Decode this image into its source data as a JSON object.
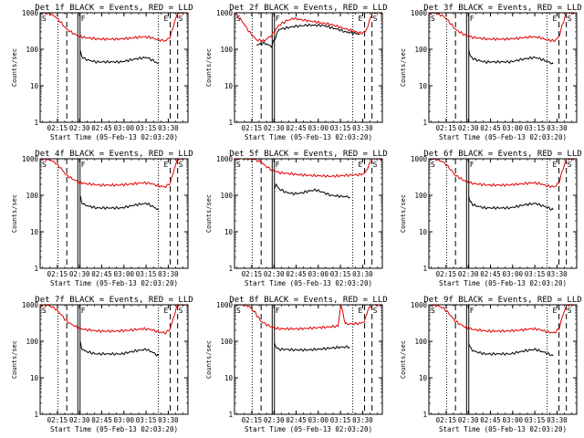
{
  "figure": {
    "background": "#ffffff"
  },
  "style": {
    "events_color": "#000000",
    "lld_color": "#e00000",
    "marker_color": "#000000"
  },
  "common": {
    "ylabel": "Counts/sec",
    "xlabel": "Start Time (05-Feb-13 02:03:20)",
    "xticks": [
      "02:15",
      "02:30",
      "02:45",
      "03:00",
      "03:15",
      "03:30"
    ],
    "yticks": [
      "1",
      "10",
      "100",
      "1000"
    ]
  },
  "chart_data": [
    {
      "type": "line",
      "title": "Det 1f BLACK = Events, RED = LLD",
      "x_unit": "minutes after 02:03:20",
      "xlim": [
        0,
        100
      ],
      "ylim": [
        1,
        1000
      ],
      "yscale": "log",
      "ylabel": "Counts/sec",
      "xlabel": "Start Time (05-Feb-13 02:03:20)",
      "annotations": [
        "S",
        "F",
        "E",
        "S"
      ],
      "markers": {
        "dotted": [
          12,
          80
        ],
        "dashed": [
          18,
          88,
          93
        ],
        "solid": [
          25.5,
          27
        ]
      },
      "series": [
        {
          "name": "BLACK = Events",
          "x": [
            27,
            28,
            30,
            33,
            38,
            45,
            55,
            65,
            72,
            76,
            80
          ],
          "y": [
            95,
            65,
            55,
            50,
            45,
            45,
            45,
            55,
            60,
            50,
            40
          ]
        },
        {
          "name": "RED = LLD",
          "x": [
            0,
            6,
            10,
            14,
            18,
            22,
            25,
            28,
            30,
            35,
            40,
            45,
            52,
            60,
            65,
            70,
            75,
            80,
            85,
            88,
            90,
            93,
            100
          ],
          "y": [
            1000,
            950,
            800,
            550,
            350,
            280,
            240,
            220,
            210,
            200,
            190,
            190,
            190,
            200,
            210,
            220,
            210,
            180,
            170,
            220,
            420,
            1000,
            1000
          ]
        }
      ]
    },
    {
      "type": "line",
      "title": "Det 2f BLACK = Events, RED = LLD",
      "x_unit": "minutes after 02:03:20",
      "xlim": [
        0,
        100
      ],
      "ylim": [
        1,
        1000
      ],
      "yscale": "log",
      "ylabel": "Counts/sec",
      "xlabel": "Start Time (05-Feb-13 02:03:20)",
      "annotations": [
        "S",
        "F",
        "E",
        "S"
      ],
      "markers": {
        "dotted": [
          12,
          80
        ],
        "dashed": [
          18,
          88,
          93
        ],
        "solid": [
          25.5,
          27
        ]
      },
      "series": [
        {
          "name": "BLACK = Events",
          "x": [
            15,
            20,
            25,
            30,
            40,
            50,
            60,
            70,
            75,
            80,
            85
          ],
          "y": [
            130,
            150,
            120,
            350,
            420,
            460,
            450,
            350,
            300,
            280,
            260
          ]
        },
        {
          "name": "RED = LLD",
          "x": [
            0,
            5,
            10,
            15,
            20,
            25,
            30,
            35,
            40,
            45,
            50,
            55,
            60,
            65,
            70,
            75,
            80,
            85,
            88,
            90,
            93,
            100
          ],
          "y": [
            1000,
            600,
            300,
            180,
            170,
            240,
            450,
            600,
            700,
            650,
            600,
            560,
            520,
            480,
            420,
            360,
            320,
            280,
            290,
            400,
            1000,
            1000
          ]
        }
      ]
    },
    {
      "type": "line",
      "title": "Det 3f BLACK = Events, RED = LLD",
      "x_unit": "minutes after 02:03:20",
      "xlim": [
        0,
        100
      ],
      "ylim": [
        1,
        1000
      ],
      "yscale": "log",
      "ylabel": "Counts/sec",
      "xlabel": "Start Time (05-Feb-13 02:03:20)",
      "annotations": [
        "S",
        "F",
        "E",
        "S"
      ],
      "markers": {
        "dotted": [
          12,
          80
        ],
        "dashed": [
          18,
          88,
          93
        ],
        "solid": [
          25.5,
          27
        ]
      },
      "series": [
        {
          "name": "BLACK = Events",
          "x": [
            27,
            28,
            30,
            33,
            38,
            45,
            55,
            65,
            72,
            78,
            84
          ],
          "y": [
            95,
            65,
            55,
            50,
            45,
            45,
            45,
            55,
            60,
            50,
            40
          ]
        },
        {
          "name": "RED = LLD",
          "x": [
            0,
            6,
            10,
            14,
            18,
            22,
            25,
            28,
            30,
            35,
            40,
            45,
            52,
            60,
            65,
            70,
            75,
            80,
            85,
            88,
            90,
            93,
            100
          ],
          "y": [
            1000,
            950,
            800,
            550,
            350,
            280,
            240,
            220,
            210,
            200,
            190,
            190,
            190,
            200,
            210,
            220,
            210,
            180,
            170,
            220,
            420,
            1000,
            1000
          ]
        }
      ]
    },
    {
      "type": "line",
      "title": "Det 4f BLACK = Events, RED = LLD",
      "x_unit": "minutes after 02:03:20",
      "xlim": [
        0,
        100
      ],
      "ylim": [
        1,
        1000
      ],
      "yscale": "log",
      "ylabel": "Counts/sec",
      "xlabel": "Start Time (05-Feb-13 02:03:20)",
      "annotations": [
        "S",
        "F",
        "E",
        "S"
      ],
      "markers": {
        "dotted": [
          12,
          80
        ],
        "dashed": [
          18,
          88,
          93
        ],
        "solid": [
          25.5,
          27
        ]
      },
      "series": [
        {
          "name": "BLACK = Events",
          "x": [
            27,
            28,
            30,
            33,
            38,
            45,
            55,
            65,
            72,
            76,
            80
          ],
          "y": [
            95,
            65,
            55,
            50,
            45,
            45,
            45,
            55,
            60,
            50,
            40
          ]
        },
        {
          "name": "RED = LLD",
          "x": [
            0,
            6,
            10,
            14,
            18,
            22,
            25,
            28,
            30,
            35,
            40,
            45,
            52,
            60,
            65,
            70,
            75,
            80,
            85,
            88,
            90,
            93,
            100
          ],
          "y": [
            1000,
            950,
            800,
            550,
            350,
            280,
            240,
            220,
            210,
            200,
            190,
            190,
            190,
            200,
            210,
            220,
            210,
            180,
            170,
            220,
            420,
            1000,
            1000
          ]
        }
      ]
    },
    {
      "type": "line",
      "title": "Det 5f BLACK = Events, RED = LLD",
      "x_unit": "minutes after 02:03:20",
      "xlim": [
        0,
        100
      ],
      "ylim": [
        1,
        1000
      ],
      "yscale": "log",
      "ylabel": "Counts/sec",
      "xlabel": "Start Time (05-Feb-13 02:03:20)",
      "annotations": [
        "S",
        "F",
        "E",
        "S"
      ],
      "markers": {
        "dotted": [
          12,
          80
        ],
        "dashed": [
          18,
          88,
          93
        ],
        "solid": [
          25.5,
          27
        ]
      },
      "series": [
        {
          "name": "BLACK = Events",
          "x": [
            27,
            28,
            30,
            35,
            40,
            45,
            50,
            55,
            60,
            65,
            70,
            78
          ],
          "y": [
            160,
            200,
            150,
            120,
            110,
            115,
            130,
            140,
            120,
            100,
            95,
            90
          ]
        },
        {
          "name": "RED = LLD",
          "x": [
            0,
            6,
            10,
            14,
            18,
            22,
            25,
            28,
            30,
            35,
            40,
            45,
            52,
            60,
            65,
            70,
            75,
            80,
            85,
            88,
            90,
            93,
            100
          ],
          "y": [
            1000,
            1000,
            1000,
            950,
            800,
            600,
            500,
            450,
            420,
            400,
            380,
            360,
            350,
            340,
            330,
            340,
            350,
            360,
            370,
            400,
            550,
            1000,
            1000
          ]
        }
      ]
    },
    {
      "type": "line",
      "title": "Det 6f BLACK = Events, RED = LLD",
      "x_unit": "minutes after 02:03:20",
      "xlim": [
        0,
        100
      ],
      "ylim": [
        1,
        1000
      ],
      "yscale": "log",
      "ylabel": "Counts/sec",
      "xlabel": "Start Time (05-Feb-13 02:03:20)",
      "annotations": [
        "S",
        "F",
        "E",
        "S"
      ],
      "markers": {
        "dotted": [
          12,
          80
        ],
        "dashed": [
          18,
          88,
          93
        ],
        "solid": [
          25.5,
          27
        ]
      },
      "series": [
        {
          "name": "BLACK = Events",
          "x": [
            27,
            28,
            30,
            33,
            38,
            45,
            55,
            65,
            72,
            78,
            84
          ],
          "y": [
            95,
            65,
            55,
            50,
            45,
            45,
            45,
            55,
            60,
            50,
            40
          ]
        },
        {
          "name": "RED = LLD",
          "x": [
            0,
            6,
            10,
            14,
            18,
            22,
            25,
            28,
            30,
            35,
            40,
            45,
            52,
            60,
            65,
            70,
            75,
            80,
            85,
            88,
            90,
            93,
            100
          ],
          "y": [
            1000,
            950,
            800,
            550,
            350,
            280,
            240,
            220,
            210,
            200,
            190,
            190,
            190,
            200,
            210,
            220,
            210,
            180,
            170,
            220,
            420,
            1000,
            1000
          ]
        }
      ]
    },
    {
      "type": "line",
      "title": "Det 7f BLACK = Events, RED = LLD",
      "x_unit": "minutes after 02:03:20",
      "xlim": [
        0,
        100
      ],
      "ylim": [
        1,
        1000
      ],
      "yscale": "log",
      "ylabel": "Counts/sec",
      "xlabel": "Start Time (05-Feb-13 02:03:20)",
      "annotations": [
        "S",
        "F",
        "E",
        "S"
      ],
      "markers": {
        "dotted": [
          12,
          80
        ],
        "dashed": [
          18,
          88,
          93
        ],
        "solid": [
          25.5,
          27
        ]
      },
      "series": [
        {
          "name": "BLACK = Events",
          "x": [
            27,
            28,
            30,
            33,
            38,
            45,
            55,
            65,
            72,
            76,
            80
          ],
          "y": [
            95,
            65,
            55,
            50,
            45,
            45,
            45,
            55,
            60,
            50,
            40
          ]
        },
        {
          "name": "RED = LLD",
          "x": [
            0,
            6,
            10,
            14,
            18,
            22,
            25,
            28,
            30,
            35,
            40,
            45,
            52,
            60,
            65,
            70,
            75,
            80,
            85,
            88,
            90,
            93,
            100
          ],
          "y": [
            1000,
            950,
            800,
            550,
            350,
            280,
            240,
            220,
            210,
            200,
            190,
            190,
            190,
            200,
            210,
            220,
            210,
            180,
            170,
            220,
            420,
            1000,
            1000
          ]
        }
      ]
    },
    {
      "type": "line",
      "title": "Det 8f BLACK = Events, RED = LLD",
      "x_unit": "minutes after 02:03:20",
      "xlim": [
        0,
        100
      ],
      "ylim": [
        1,
        1000
      ],
      "yscale": "log",
      "ylabel": "Counts/sec",
      "xlabel": "Start Time (05-Feb-13 02:03:20)",
      "annotations": [
        "S",
        "F",
        "E",
        "S"
      ],
      "markers": {
        "dotted": [
          12,
          80
        ],
        "dashed": [
          18,
          88,
          93
        ],
        "solid": [
          25.5,
          27
        ]
      },
      "series": [
        {
          "name": "BLACK = Events",
          "x": [
            27,
            28,
            30,
            35,
            40,
            45,
            50,
            55,
            60,
            65,
            70,
            75,
            78
          ],
          "y": [
            90,
            70,
            60,
            60,
            58,
            58,
            58,
            60,
            62,
            65,
            68,
            70,
            70
          ]
        },
        {
          "name": "RED = LLD",
          "x": [
            0,
            6,
            10,
            14,
            18,
            22,
            25,
            28,
            30,
            35,
            40,
            45,
            52,
            60,
            65,
            70,
            72,
            75,
            80,
            85,
            88,
            90,
            93,
            100
          ],
          "y": [
            1000,
            1000,
            900,
            600,
            350,
            280,
            250,
            230,
            220,
            220,
            220,
            220,
            230,
            240,
            250,
            260,
            1000,
            300,
            300,
            310,
            350,
            700,
            1000,
            1000
          ]
        }
      ]
    },
    {
      "type": "line",
      "title": "Det 9f BLACK = Events, RED = LLD",
      "x_unit": "minutes after 02:03:20",
      "xlim": [
        0,
        100
      ],
      "ylim": [
        1,
        1000
      ],
      "yscale": "log",
      "ylabel": "Counts/sec",
      "xlabel": "Start Time (05-Feb-13 02:03:20)",
      "annotations": [
        "S",
        "F",
        "E",
        "S"
      ],
      "markers": {
        "dotted": [
          12,
          80
        ],
        "dashed": [
          18,
          88,
          93
        ],
        "solid": [
          25.5,
          27
        ]
      },
      "series": [
        {
          "name": "BLACK = Events",
          "x": [
            27,
            28,
            30,
            33,
            38,
            45,
            55,
            65,
            72,
            78,
            84
          ],
          "y": [
            95,
            65,
            55,
            50,
            45,
            45,
            45,
            55,
            60,
            50,
            40
          ]
        },
        {
          "name": "RED = LLD",
          "x": [
            0,
            6,
            10,
            14,
            18,
            22,
            25,
            28,
            30,
            35,
            40,
            45,
            52,
            60,
            65,
            70,
            75,
            80,
            85,
            88,
            90,
            93,
            100
          ],
          "y": [
            1000,
            950,
            800,
            550,
            350,
            280,
            240,
            220,
            210,
            200,
            190,
            190,
            190,
            200,
            210,
            220,
            210,
            180,
            170,
            220,
            420,
            1000,
            1000
          ]
        }
      ]
    }
  ]
}
